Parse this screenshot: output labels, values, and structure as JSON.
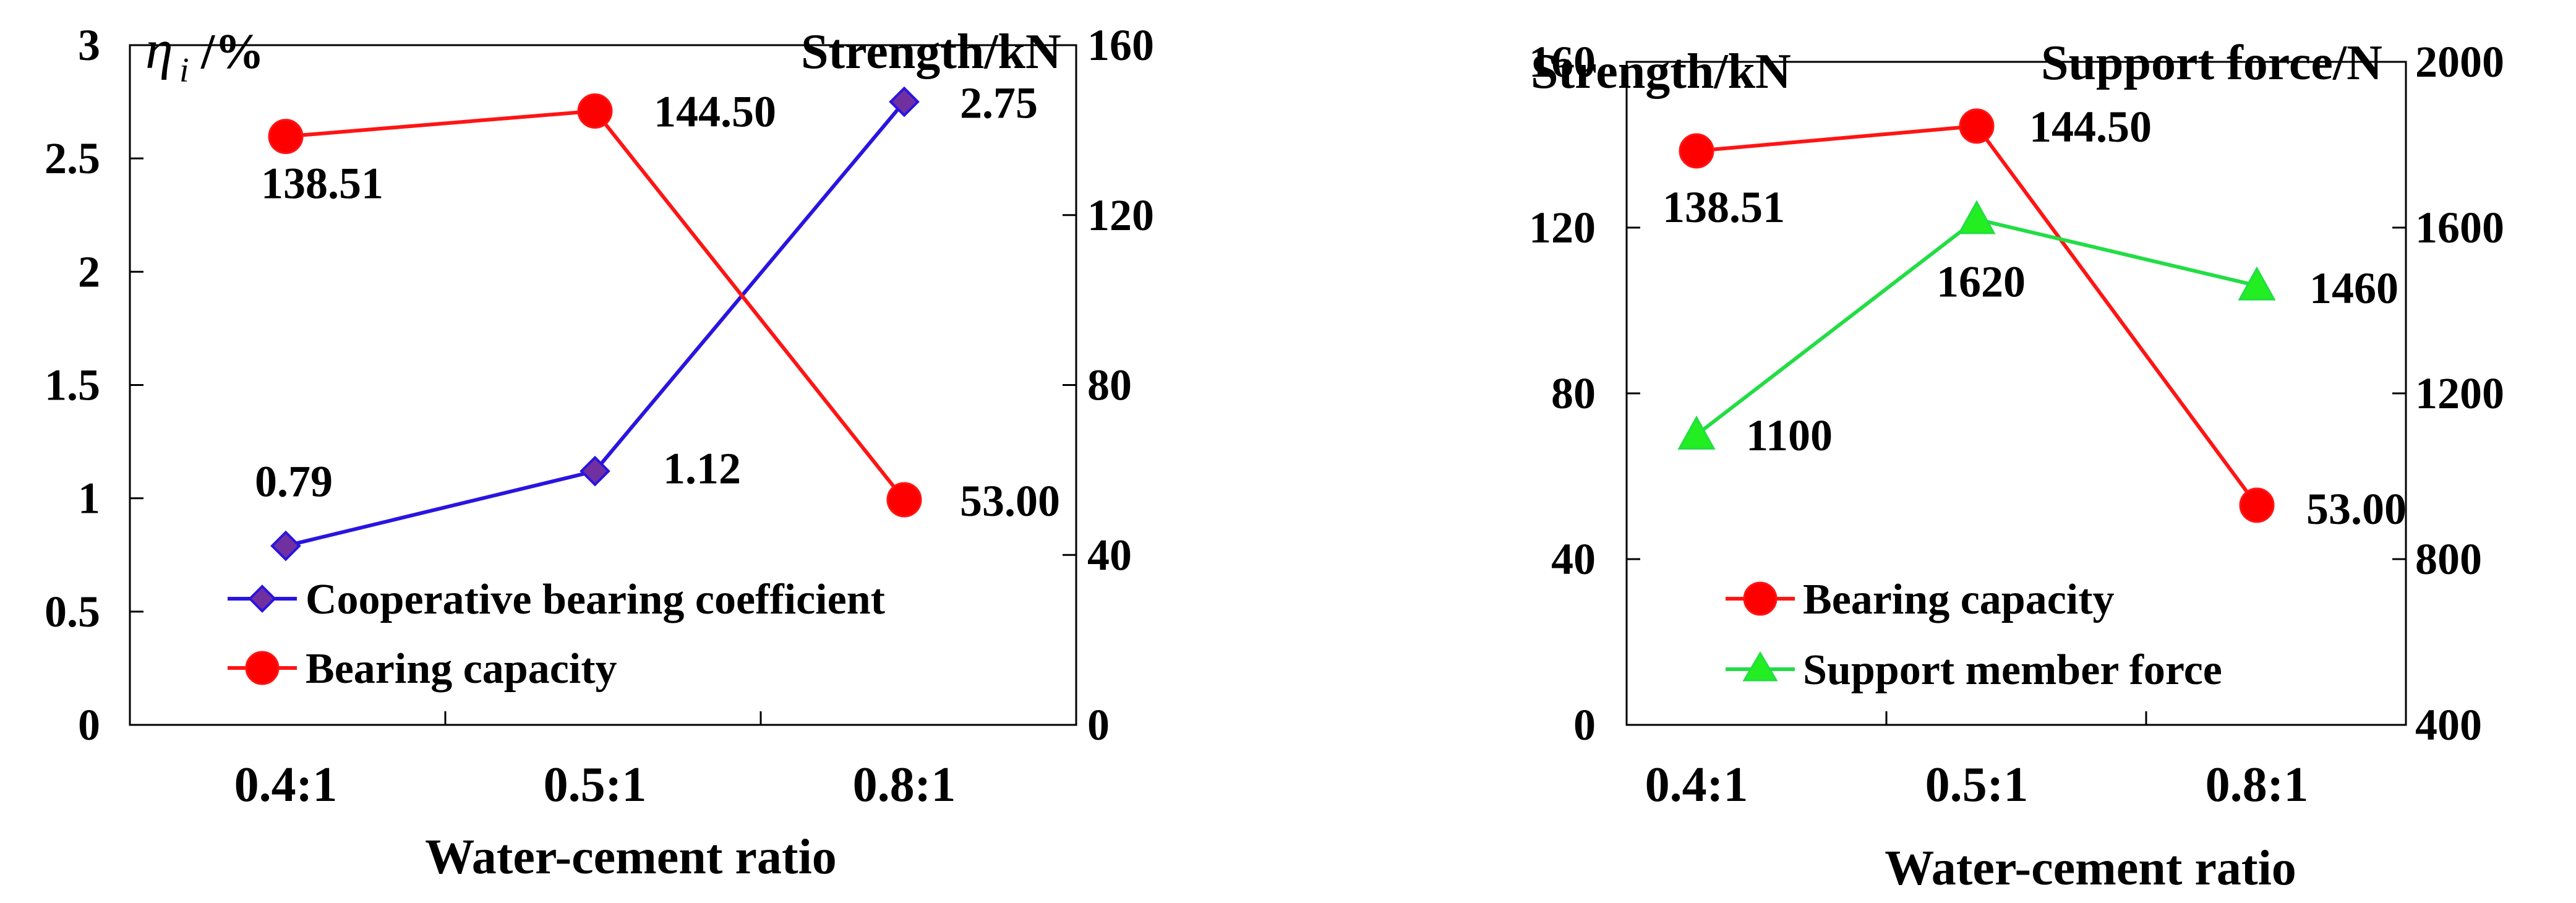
{
  "chart_data": [
    {
      "type": "line",
      "title": "",
      "xlabel": "Water-cement ratio",
      "ylabel_left": "/%",
      "ylabel_left_symbol": "η",
      "ylabel_left_subscript": "i",
      "ylabel_right": "Strength/kN",
      "categories": [
        "0.4:1",
        "0.5:1",
        "0.8:1"
      ],
      "ylim_left": [
        0,
        3
      ],
      "yticks_left": [
        "0",
        "0.5",
        "1",
        "1.5",
        "2",
        "2.5",
        "3"
      ],
      "ylim_right": [
        0,
        160
      ],
      "yticks_right": [
        "0",
        "40",
        "80",
        "120",
        "160"
      ],
      "legend_position": "lower-left",
      "series": [
        {
          "name": "Cooperative bearing coefficient",
          "axis": "left",
          "marker": "diamond",
          "color": "#2a14e0",
          "marker_fill": "#7030a0",
          "values": [
            0.79,
            1.12,
            2.75
          ],
          "labels": [
            "0.79",
            "1.12",
            "2.75"
          ]
        },
        {
          "name": "Bearing capacity",
          "axis": "right",
          "marker": "circle",
          "color": "#ff1414",
          "marker_fill": "#ff0000",
          "values": [
            138.51,
            144.5,
            53.0
          ],
          "labels": [
            "138.51",
            "144.50",
            "53.00"
          ]
        }
      ]
    },
    {
      "type": "line",
      "title": "",
      "xlabel": "Water-cement ratio",
      "ylabel_left": "Strength/kN",
      "ylabel_right": "Support force/N",
      "categories": [
        "0.4:1",
        "0.5:1",
        "0.8:1"
      ],
      "ylim_left": [
        0,
        160
      ],
      "yticks_left": [
        "0",
        "40",
        "80",
        "120",
        "160"
      ],
      "ylim_right": [
        400,
        2000
      ],
      "yticks_right": [
        "400",
        "800",
        "1200",
        "1600",
        "2000"
      ],
      "legend_position": "lower-left",
      "series": [
        {
          "name": "Bearing capacity",
          "axis": "left",
          "marker": "circle",
          "color": "#ff1414",
          "marker_fill": "#ff0000",
          "values": [
            138.51,
            144.5,
            53.0
          ],
          "labels": [
            "138.51",
            "144.50",
            "53.00"
          ]
        },
        {
          "name": "Support member force",
          "axis": "right",
          "marker": "triangle",
          "color": "#22dd44",
          "marker_fill": "#22ee22",
          "values": [
            1100,
            1620,
            1460
          ],
          "labels": [
            "1100",
            "1620",
            "1460"
          ]
        }
      ]
    }
  ]
}
